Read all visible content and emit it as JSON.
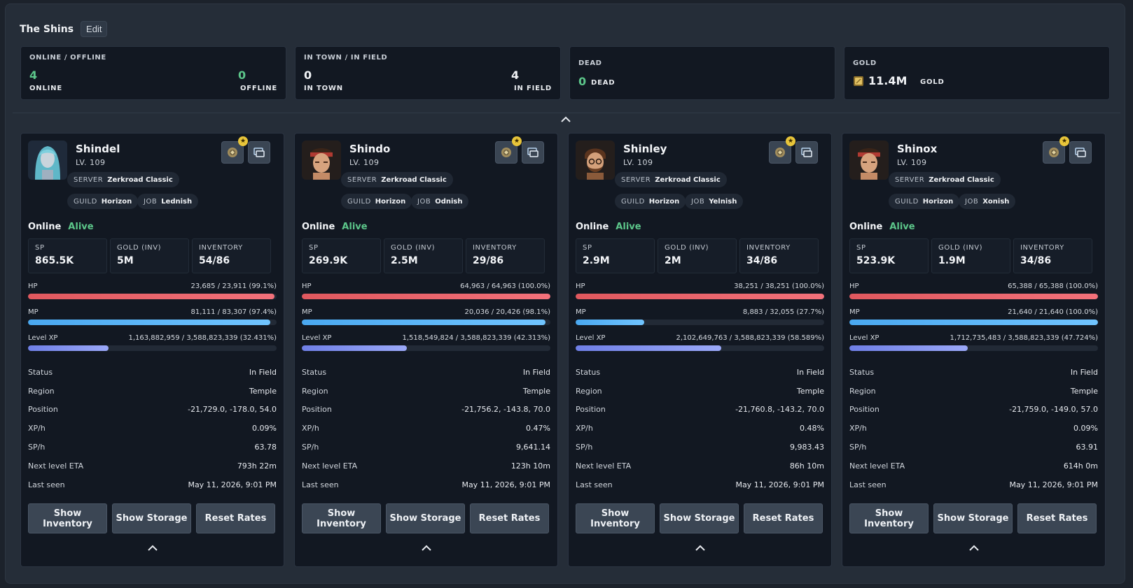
{
  "header": {
    "team_name": "The Shins",
    "edit_label": "Edit"
  },
  "summary": [
    {
      "title": "ONLINE / OFFLINE",
      "left_value": "4",
      "left_label": "ONLINE",
      "right_value": "0",
      "right_label": "OFFLINE"
    },
    {
      "title": "IN TOWN / IN FIELD",
      "left_value": "0",
      "left_label": "IN TOWN",
      "right_value": "4",
      "right_label": "IN FIELD"
    },
    {
      "title": "DEAD",
      "value": "0",
      "label": "DEAD"
    },
    {
      "title": "GOLD",
      "value": "11.4M",
      "label": "GOLD",
      "icon": "gold-coin-icon"
    }
  ],
  "labels": {
    "server": "SERVER",
    "guild": "GUILD",
    "job": "JOB",
    "sp": "SP",
    "gold_inv": "GOLD (INV)",
    "inventory": "INVENTORY",
    "hp": "HP",
    "mp": "MP",
    "level_xp": "Level XP",
    "status": "Status",
    "region": "Region",
    "position": "Position",
    "xph": "XP/h",
    "sph": "SP/h",
    "next_eta": "Next level ETA",
    "last_seen": "Last seen",
    "show_inventory": "Show Inventory",
    "show_storage": "Show Storage",
    "reset_rates": "Reset Rates"
  },
  "characters": [
    {
      "name": "Shindel",
      "level": "LV. 109",
      "server": "Zerkroad Classic",
      "guild": "Horizon",
      "job": "Lednish",
      "online": "Online",
      "alive": "Alive",
      "sp": "865.5K",
      "gold_inv": "5M",
      "inventory": "54/86",
      "hp_text": "23,685 / 23,911 (99.1%)",
      "hp_pct": 99.1,
      "mp_text": "81,111 / 83,307 (97.4%)",
      "mp_pct": 97.4,
      "xp_text": "1,163,882,959 / 3,588,823,339 (32.431%)",
      "xp_pct": 32.431,
      "status": "In Field",
      "region": "Temple",
      "position": "-21,729.0, -178.0, 54.0",
      "xph": "0.09%",
      "sph": "63.78",
      "next_eta": "793h 22m",
      "last_seen": "May 11, 2026, 9:01 PM",
      "avatar": "female-blue-hair"
    },
    {
      "name": "Shindo",
      "level": "LV. 109",
      "server": "Zerkroad Classic",
      "guild": "Horizon",
      "job": "Odnish",
      "online": "Online",
      "alive": "Alive",
      "sp": "269.9K",
      "gold_inv": "2.5M",
      "inventory": "29/86",
      "hp_text": "64,963 / 64,963 (100.0%)",
      "hp_pct": 100,
      "mp_text": "20,036 / 20,426 (98.1%)",
      "mp_pct": 98.1,
      "xp_text": "1,518,549,824 / 3,588,823,339 (42.313%)",
      "xp_pct": 42.313,
      "status": "In Field",
      "region": "Temple",
      "position": "-21,756.2, -143.8, 70.0",
      "xph": "0.47%",
      "sph": "9,641.14",
      "next_eta": "123h 10m",
      "last_seen": "May 11, 2026, 9:01 PM",
      "avatar": "male-headband"
    },
    {
      "name": "Shinley",
      "level": "LV. 109",
      "server": "Zerkroad Classic",
      "guild": "Horizon",
      "job": "Yelnish",
      "online": "Online",
      "alive": "Alive",
      "sp": "2.9M",
      "gold_inv": "2M",
      "inventory": "34/86",
      "hp_text": "38,251 / 38,251 (100.0%)",
      "hp_pct": 100,
      "mp_text": "8,883 / 32,055 (27.7%)",
      "mp_pct": 27.7,
      "xp_text": "2,102,649,763 / 3,588,823,339 (58.589%)",
      "xp_pct": 58.589,
      "status": "In Field",
      "region": "Temple",
      "position": "-21,760.8, -143.2, 70.0",
      "xph": "0.48%",
      "sph": "9,983.43",
      "next_eta": "86h 10m",
      "last_seen": "May 11, 2026, 9:01 PM",
      "avatar": "male-glasses-beard"
    },
    {
      "name": "Shinox",
      "level": "LV. 109",
      "server": "Zerkroad Classic",
      "guild": "Horizon",
      "job": "Xonish",
      "online": "Online",
      "alive": "Alive",
      "sp": "523.9K",
      "gold_inv": "1.9M",
      "inventory": "34/86",
      "hp_text": "65,388 / 65,388 (100.0%)",
      "hp_pct": 100,
      "mp_text": "21,640 / 21,640 (100.0%)",
      "mp_pct": 100,
      "xp_text": "1,712,735,483 / 3,588,823,339 (47.724%)",
      "xp_pct": 47.724,
      "status": "In Field",
      "region": "Temple",
      "position": "-21,759.0, -149.0, 57.0",
      "xph": "0.09%",
      "sph": "63.91",
      "next_eta": "614h 0m",
      "last_seen": "May 11, 2026, 9:01 PM",
      "avatar": "male-headband"
    }
  ]
}
